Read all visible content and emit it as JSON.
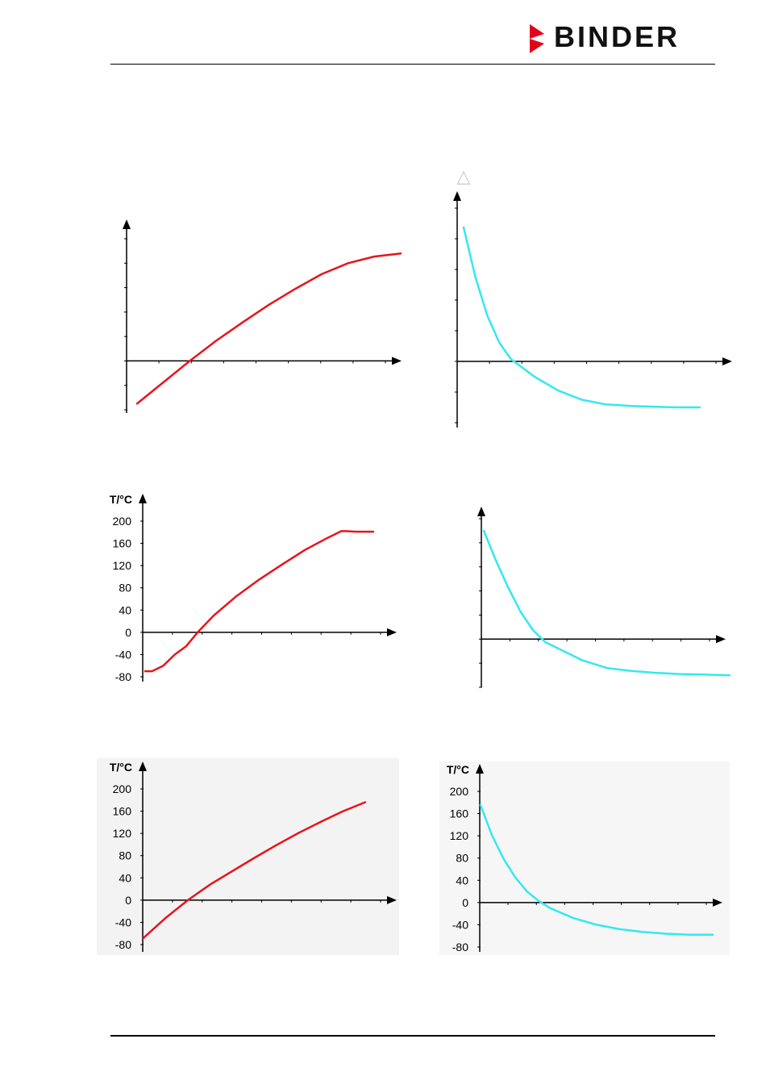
{
  "brand": {
    "name": "BINDER",
    "mark_color": "#e3001b"
  },
  "colors": {
    "heating": "#e8141b",
    "cooling": "#34e8f0"
  },
  "delta_symbol": "△",
  "chart_data": [
    {
      "id": "chart-1",
      "type": "line",
      "title": "",
      "xlabel": "",
      "ylabel": "",
      "ylim": [
        -80,
        200
      ],
      "show_y_ticklabels": false,
      "grid": false,
      "series": [
        {
          "name": "",
          "color": "#e8141b",
          "x": [
            0,
            10,
            20,
            30,
            40,
            50,
            60,
            70,
            80,
            90,
            100
          ],
          "y": [
            -70,
            -35,
            0,
            33,
            63,
            92,
            118,
            142,
            160,
            171,
            176
          ]
        }
      ]
    },
    {
      "id": "chart-2",
      "type": "line",
      "title": "",
      "xlabel": "",
      "ylabel": "",
      "ylim": [
        -80,
        200
      ],
      "show_y_ticklabels": false,
      "grid": false,
      "series": [
        {
          "name": "",
          "color": "#34e8f0",
          "x": [
            0,
            5,
            10,
            15,
            20,
            30,
            40,
            50,
            60,
            70,
            80,
            90,
            100
          ],
          "y": [
            175,
            110,
            60,
            25,
            3,
            -20,
            -38,
            -50,
            -56,
            -58,
            -59,
            -60,
            -60
          ]
        }
      ]
    },
    {
      "id": "chart-3",
      "type": "line",
      "title": "",
      "xlabel": "",
      "ylabel": "T/°C",
      "ylim": [
        -80,
        200
      ],
      "yticks": [
        "200",
        "160",
        "120",
        "80",
        "40",
        "0",
        "-40",
        "-80"
      ],
      "show_y_ticklabels": true,
      "grid": false,
      "series": [
        {
          "name": "",
          "color": "#e8141b",
          "x": [
            0,
            3,
            8,
            13,
            18,
            23,
            30,
            40,
            50,
            60,
            70,
            80,
            86,
            88,
            92,
            100
          ],
          "y": [
            -70,
            -70,
            -60,
            -40,
            -25,
            0,
            30,
            65,
            95,
            122,
            148,
            170,
            182,
            182,
            181,
            181
          ]
        }
      ]
    },
    {
      "id": "chart-4",
      "type": "line",
      "title": "",
      "xlabel": "",
      "ylabel": "",
      "ylim": [
        -80,
        200
      ],
      "show_y_ticklabels": false,
      "grid": false,
      "series": [
        {
          "name": "",
          "color": "#34e8f0",
          "x": [
            0,
            5,
            10,
            15,
            20,
            25,
            30,
            40,
            50,
            60,
            70,
            80,
            90,
            100
          ],
          "y": [
            180,
            130,
            85,
            45,
            15,
            -5,
            -15,
            -35,
            -48,
            -53,
            -56,
            -58,
            -59,
            -60
          ]
        }
      ]
    },
    {
      "id": "chart-5",
      "type": "line",
      "title": "",
      "xlabel": "",
      "ylabel": "T/°C",
      "ylim": [
        -80,
        200
      ],
      "yticks": [
        "200",
        "160",
        "120",
        "80",
        "40",
        "0",
        "-40",
        "-80"
      ],
      "show_y_ticklabels": true,
      "grid": false,
      "series": [
        {
          "name": "",
          "color": "#e8141b",
          "x": [
            0,
            10,
            20,
            30,
            40,
            50,
            60,
            70,
            80,
            90,
            100
          ],
          "y": [
            -68,
            -32,
            0,
            28,
            52,
            76,
            99,
            121,
            141,
            160,
            176
          ]
        }
      ]
    },
    {
      "id": "chart-6",
      "type": "line",
      "title": "",
      "xlabel": "",
      "ylabel": "T/°C",
      "ylim": [
        -80,
        200
      ],
      "yticks": [
        "200",
        "160",
        "120",
        "80",
        "40",
        "0",
        "-40",
        "-80"
      ],
      "show_y_ticklabels": true,
      "grid": false,
      "series": [
        {
          "name": "",
          "color": "#34e8f0",
          "x": [
            0,
            5,
            10,
            15,
            20,
            25,
            30,
            40,
            50,
            60,
            70,
            80,
            90,
            100
          ],
          "y": [
            175,
            120,
            78,
            45,
            20,
            3,
            -10,
            -28,
            -40,
            -48,
            -53,
            -56,
            -58,
            -58
          ]
        }
      ]
    }
  ]
}
